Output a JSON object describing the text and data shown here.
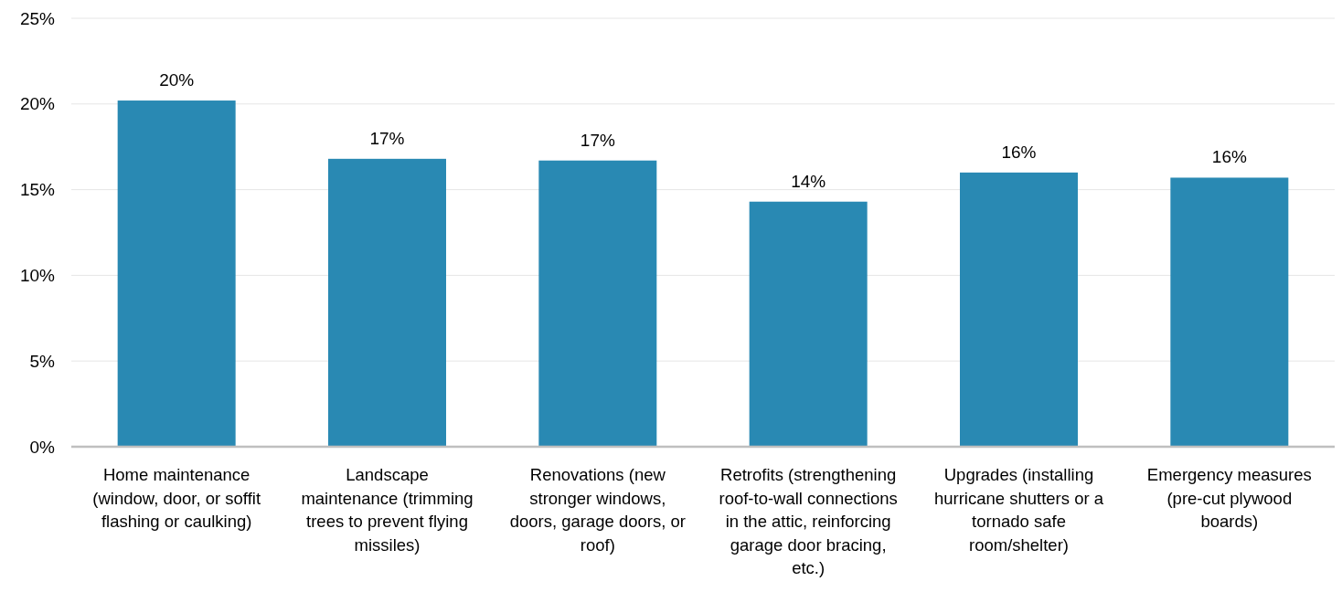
{
  "chart_data": {
    "type": "bar",
    "categories": [
      "Home maintenance (window, door, or soffit flashing or caulking)",
      "Landscape maintenance (trimming trees to prevent flying missiles)",
      "Renovations (new stronger windows, doors, garage doors, or roof)",
      "Retrofits (strengthening roof-to-wall connections in the attic, reinforcing garage door bracing, etc.)",
      "Upgrades (installing hurricane shutters or a tornado safe room/shelter)",
      "Emergency measures (pre-cut plywood boards)"
    ],
    "values": [
      20.2,
      16.8,
      16.7,
      14.3,
      16.0,
      15.7
    ],
    "value_labels": [
      "20%",
      "17%",
      "17%",
      "14%",
      "16%",
      "16%"
    ],
    "color": "#2989b3",
    "ylim": [
      0,
      25
    ],
    "yticks": [
      {
        "value": 0,
        "label": "0%"
      },
      {
        "value": 5,
        "label": "5%"
      },
      {
        "value": 10,
        "label": "10%"
      },
      {
        "value": 15,
        "label": "15%"
      },
      {
        "value": 20,
        "label": "20%"
      },
      {
        "value": 25,
        "label": "25%"
      }
    ],
    "grid": "y"
  }
}
